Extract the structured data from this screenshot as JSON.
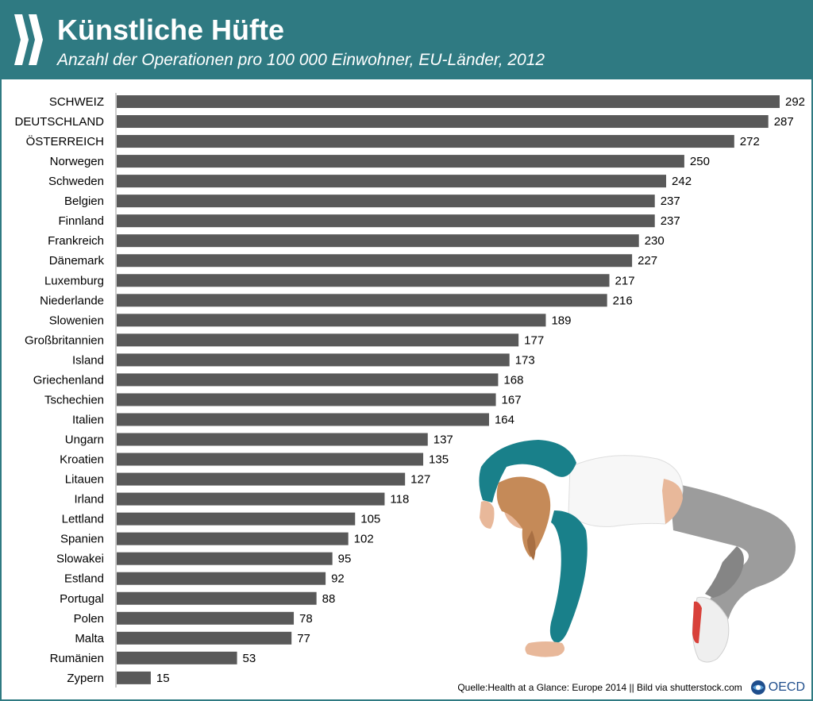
{
  "title": "Künstliche Hüfte",
  "subtitle": "Anzahl der Operationen pro 100 000 Einwohner, EU-Länder, 2012",
  "colors": {
    "header_bg": "#2f7a82",
    "bar": "#595959",
    "text": "#000000",
    "oecd_blue": "#1f4e8c"
  },
  "icons": {
    "logo": "double-chevron-quote-icon",
    "oecd": "oecd-globe-icon",
    "photo": "breakdancer-photo"
  },
  "footer": {
    "source": "Quelle:Health at a Glance: Europe 2014 || Bild via shutterstock.com",
    "oecd_label": "OECD"
  },
  "chart_data": {
    "type": "bar",
    "orientation": "horizontal",
    "title": "Künstliche Hüfte",
    "subtitle": "Anzahl der Operationen pro 100 000 Einwohner, EU-Länder, 2012",
    "xlabel": "",
    "ylabel": "",
    "xlim": [
      0,
      292
    ],
    "grid": false,
    "legend": "none",
    "data_labels": true,
    "categories": [
      "SCHWEIZ",
      "DEUTSCHLAND",
      "ÖSTERREICH",
      "Norwegen",
      "Schweden",
      "Belgien",
      "Finnland",
      "Frankreich",
      "Dänemark",
      "Luxemburg",
      "Niederlande",
      "Slowenien",
      "Großbritannien",
      "Island",
      "Griechenland",
      "Tschechien",
      "Italien",
      "Ungarn",
      "Kroatien",
      "Litauen",
      "Irland",
      "Lettland",
      "Spanien",
      "Slowakei",
      "Estland",
      "Portugal",
      "Polen",
      "Malta",
      "Rumänien",
      "Zypern"
    ],
    "values": [
      292,
      287,
      272,
      250,
      242,
      237,
      237,
      230,
      227,
      217,
      216,
      189,
      177,
      173,
      168,
      167,
      164,
      137,
      135,
      127,
      118,
      105,
      102,
      95,
      92,
      88,
      78,
      77,
      53,
      15
    ]
  }
}
